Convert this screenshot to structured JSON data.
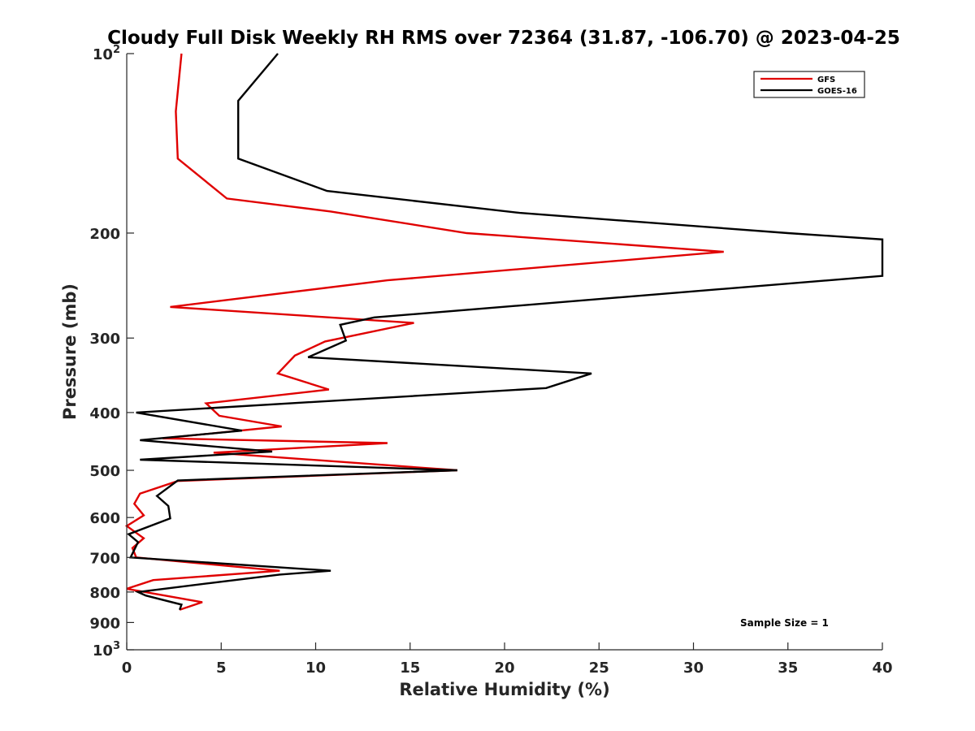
{
  "chart_data": {
    "type": "line",
    "title": "Cloudy Full Disk Weekly RH RMS over 72364 (31.87, -106.70) @ 2023-04-25",
    "xlabel": "Relative Humidity (%)",
    "ylabel": "Pressure (mb)",
    "xlim": [
      0,
      40
    ],
    "ylim": [
      100,
      1000
    ],
    "y_scale": "log",
    "y_reversed": true,
    "x_ticks": [
      0,
      5,
      10,
      15,
      20,
      25,
      30,
      35,
      40
    ],
    "x_tick_labels": [
      "0",
      "5",
      "10",
      "15",
      "20",
      "25",
      "30",
      "35",
      "40"
    ],
    "y_ticks": [
      100,
      200,
      300,
      400,
      500,
      600,
      700,
      800,
      900,
      1000
    ],
    "y_tick_labels": [
      {
        "base": "10",
        "exp": "2"
      },
      {
        "base": "200",
        "exp": ""
      },
      {
        "base": "300",
        "exp": ""
      },
      {
        "base": "400",
        "exp": ""
      },
      {
        "base": "500",
        "exp": ""
      },
      {
        "base": "600",
        "exp": ""
      },
      {
        "base": "700",
        "exp": ""
      },
      {
        "base": "800",
        "exp": ""
      },
      {
        "base": "900",
        "exp": ""
      },
      {
        "base": "10",
        "exp": "3"
      }
    ],
    "grid": false,
    "legend_position": "top-right",
    "annotation": "Sample Size = 1",
    "series": [
      {
        "name": "GFS",
        "color": "#e00000",
        "points": [
          [
            2.9,
            100
          ],
          [
            2.6,
            125
          ],
          [
            2.7,
            150
          ],
          [
            5.3,
            175
          ],
          [
            10.8,
            184
          ],
          [
            18.0,
            200
          ],
          [
            31.6,
            215
          ],
          [
            13.8,
            240
          ],
          [
            2.3,
            266
          ],
          [
            15.2,
            283
          ],
          [
            10.5,
            304
          ],
          [
            8.9,
            321
          ],
          [
            8.0,
            344
          ],
          [
            10.7,
            366
          ],
          [
            4.2,
            386
          ],
          [
            4.9,
            405
          ],
          [
            8.2,
            422
          ],
          [
            1.9,
            442
          ],
          [
            13.8,
            450
          ],
          [
            4.6,
            467
          ],
          [
            17.5,
            500
          ],
          [
            2.7,
            521
          ],
          [
            0.7,
            547
          ],
          [
            0.4,
            569
          ],
          [
            0.9,
            595
          ],
          [
            0.0,
            620
          ],
          [
            0.9,
            650
          ],
          [
            0.3,
            675
          ],
          [
            0.5,
            700
          ],
          [
            8.1,
            737
          ],
          [
            1.4,
            764
          ],
          [
            0.0,
            790
          ],
          [
            4.0,
            832
          ],
          [
            2.8,
            857
          ]
        ]
      },
      {
        "name": "GOES-16",
        "color": "#000000",
        "points": [
          [
            8.0,
            100
          ],
          [
            5.9,
            120
          ],
          [
            5.9,
            150
          ],
          [
            10.6,
            170
          ],
          [
            20.8,
            185
          ],
          [
            35.0,
            200
          ],
          [
            40.0,
            205
          ],
          [
            40.0,
            236
          ],
          [
            13.1,
            277
          ],
          [
            11.3,
            285
          ],
          [
            11.6,
            303
          ],
          [
            9.6,
            323
          ],
          [
            24.6,
            344
          ],
          [
            22.2,
            364
          ],
          [
            0.5,
            400
          ],
          [
            6.1,
            429
          ],
          [
            0.7,
            445
          ],
          [
            7.7,
            465
          ],
          [
            0.7,
            480
          ],
          [
            17.5,
            500
          ],
          [
            2.7,
            520
          ],
          [
            1.6,
            552
          ],
          [
            2.2,
            574
          ],
          [
            2.3,
            602
          ],
          [
            0.1,
            640
          ],
          [
            0.6,
            660
          ],
          [
            0.2,
            700
          ],
          [
            10.8,
            737
          ],
          [
            8.1,
            748
          ],
          [
            4.4,
            773
          ],
          [
            0.6,
            800
          ],
          [
            1.0,
            811
          ],
          [
            2.9,
            840
          ],
          [
            2.8,
            857
          ]
        ]
      }
    ]
  }
}
